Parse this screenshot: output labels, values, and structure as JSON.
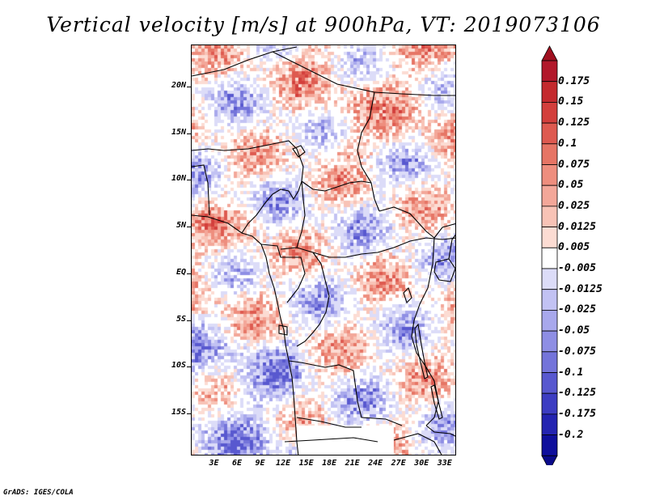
{
  "title": "Vertical velocity [m/s] at 900hPa, VT: 2019073106",
  "credit": "GrADS: IGES/COLA",
  "map": {
    "lat_labels": [
      {
        "text": "20N",
        "lat": 20
      },
      {
        "text": "15N",
        "lat": 15
      },
      {
        "text": "10N",
        "lat": 10
      },
      {
        "text": "5N",
        "lat": 5
      },
      {
        "text": "EQ",
        "lat": 0
      },
      {
        "text": "5S",
        "lat": -5
      },
      {
        "text": "10S",
        "lat": -10
      },
      {
        "text": "15S",
        "lat": -15
      }
    ],
    "lon_labels": [
      {
        "text": "3E",
        "lon": 3
      },
      {
        "text": "6E",
        "lon": 6
      },
      {
        "text": "9E",
        "lon": 9
      },
      {
        "text": "12E",
        "lon": 12
      },
      {
        "text": "15E",
        "lon": 15
      },
      {
        "text": "18E",
        "lon": 18
      },
      {
        "text": "21E",
        "lon": 21
      },
      {
        "text": "24E",
        "lon": 24
      },
      {
        "text": "27E",
        "lon": 27
      },
      {
        "text": "30E",
        "lon": 30
      },
      {
        "text": "33E",
        "lon": 33
      }
    ],
    "lat_range": [
      -19.5,
      24.5
    ],
    "lon_range": [
      0,
      34.5
    ]
  },
  "colorbar": {
    "labels": [
      "0.175",
      "0.15",
      "0.125",
      "0.1",
      "0.075",
      "0.05",
      "0.025",
      "0.0125",
      "0.005",
      "-0.005",
      "-0.0125",
      "-0.025",
      "-0.05",
      "-0.075",
      "-0.1",
      "-0.125",
      "-0.175",
      "-0.2"
    ],
    "colors": [
      "#b2182b",
      "#c42a2e",
      "#d33f3c",
      "#de5a50",
      "#e67565",
      "#ee8e7e",
      "#f3a799",
      "#f8c3b6",
      "#fcdcd3",
      "#ffffff",
      "#dcdcf8",
      "#c2c2f3",
      "#a8a8ec",
      "#8e8ee4",
      "#7474da",
      "#5858cf",
      "#3d3dc2",
      "#2424b1",
      "#0f0f9c"
    ],
    "top_arrow_color": "#a01020",
    "bottom_arrow_color": "#0a0a8a"
  }
}
